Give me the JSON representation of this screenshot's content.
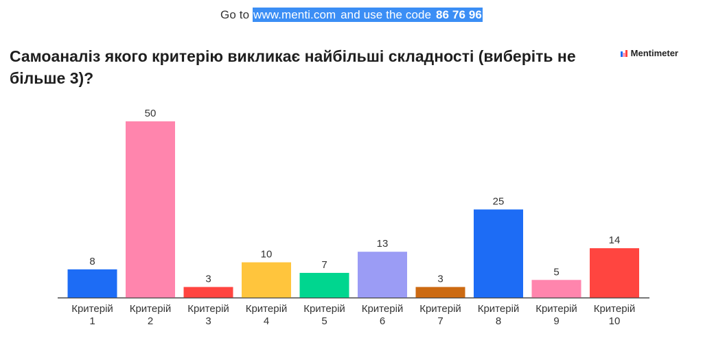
{
  "join_banner": {
    "prefix": "Go to ",
    "url": "www.menti.com",
    "middle": " and use the code ",
    "code": "86 76 96"
  },
  "question": "Самоаналіз якого критерію викликає найбільші складності (виберіть не більше 3)?",
  "brand": {
    "name": "Mentimeter",
    "logo_icon": "mentimeter-logo-icon"
  },
  "chart_data": {
    "type": "bar",
    "categories": [
      [
        "Критерій",
        "1"
      ],
      [
        "Критерій",
        "2"
      ],
      [
        "Критерій",
        "3"
      ],
      [
        "Критерій",
        "4"
      ],
      [
        "Критерій",
        "5"
      ],
      [
        "Критерій",
        "6"
      ],
      [
        "Критерій",
        "7"
      ],
      [
        "Критерій",
        "8"
      ],
      [
        "Критерій",
        "9"
      ],
      [
        "Критерій",
        "10"
      ]
    ],
    "values": [
      8,
      50,
      3,
      10,
      7,
      13,
      3,
      25,
      5,
      14
    ],
    "colors": [
      "#1d6cf5",
      "#ff85ad",
      "#ff4540",
      "#ffc53d",
      "#00d68f",
      "#9b9cf5",
      "#cc6a12",
      "#1d6cf5",
      "#ff85ad",
      "#ff4540"
    ],
    "ylim": [
      0,
      50
    ],
    "grid": false,
    "value_labels": true
  }
}
